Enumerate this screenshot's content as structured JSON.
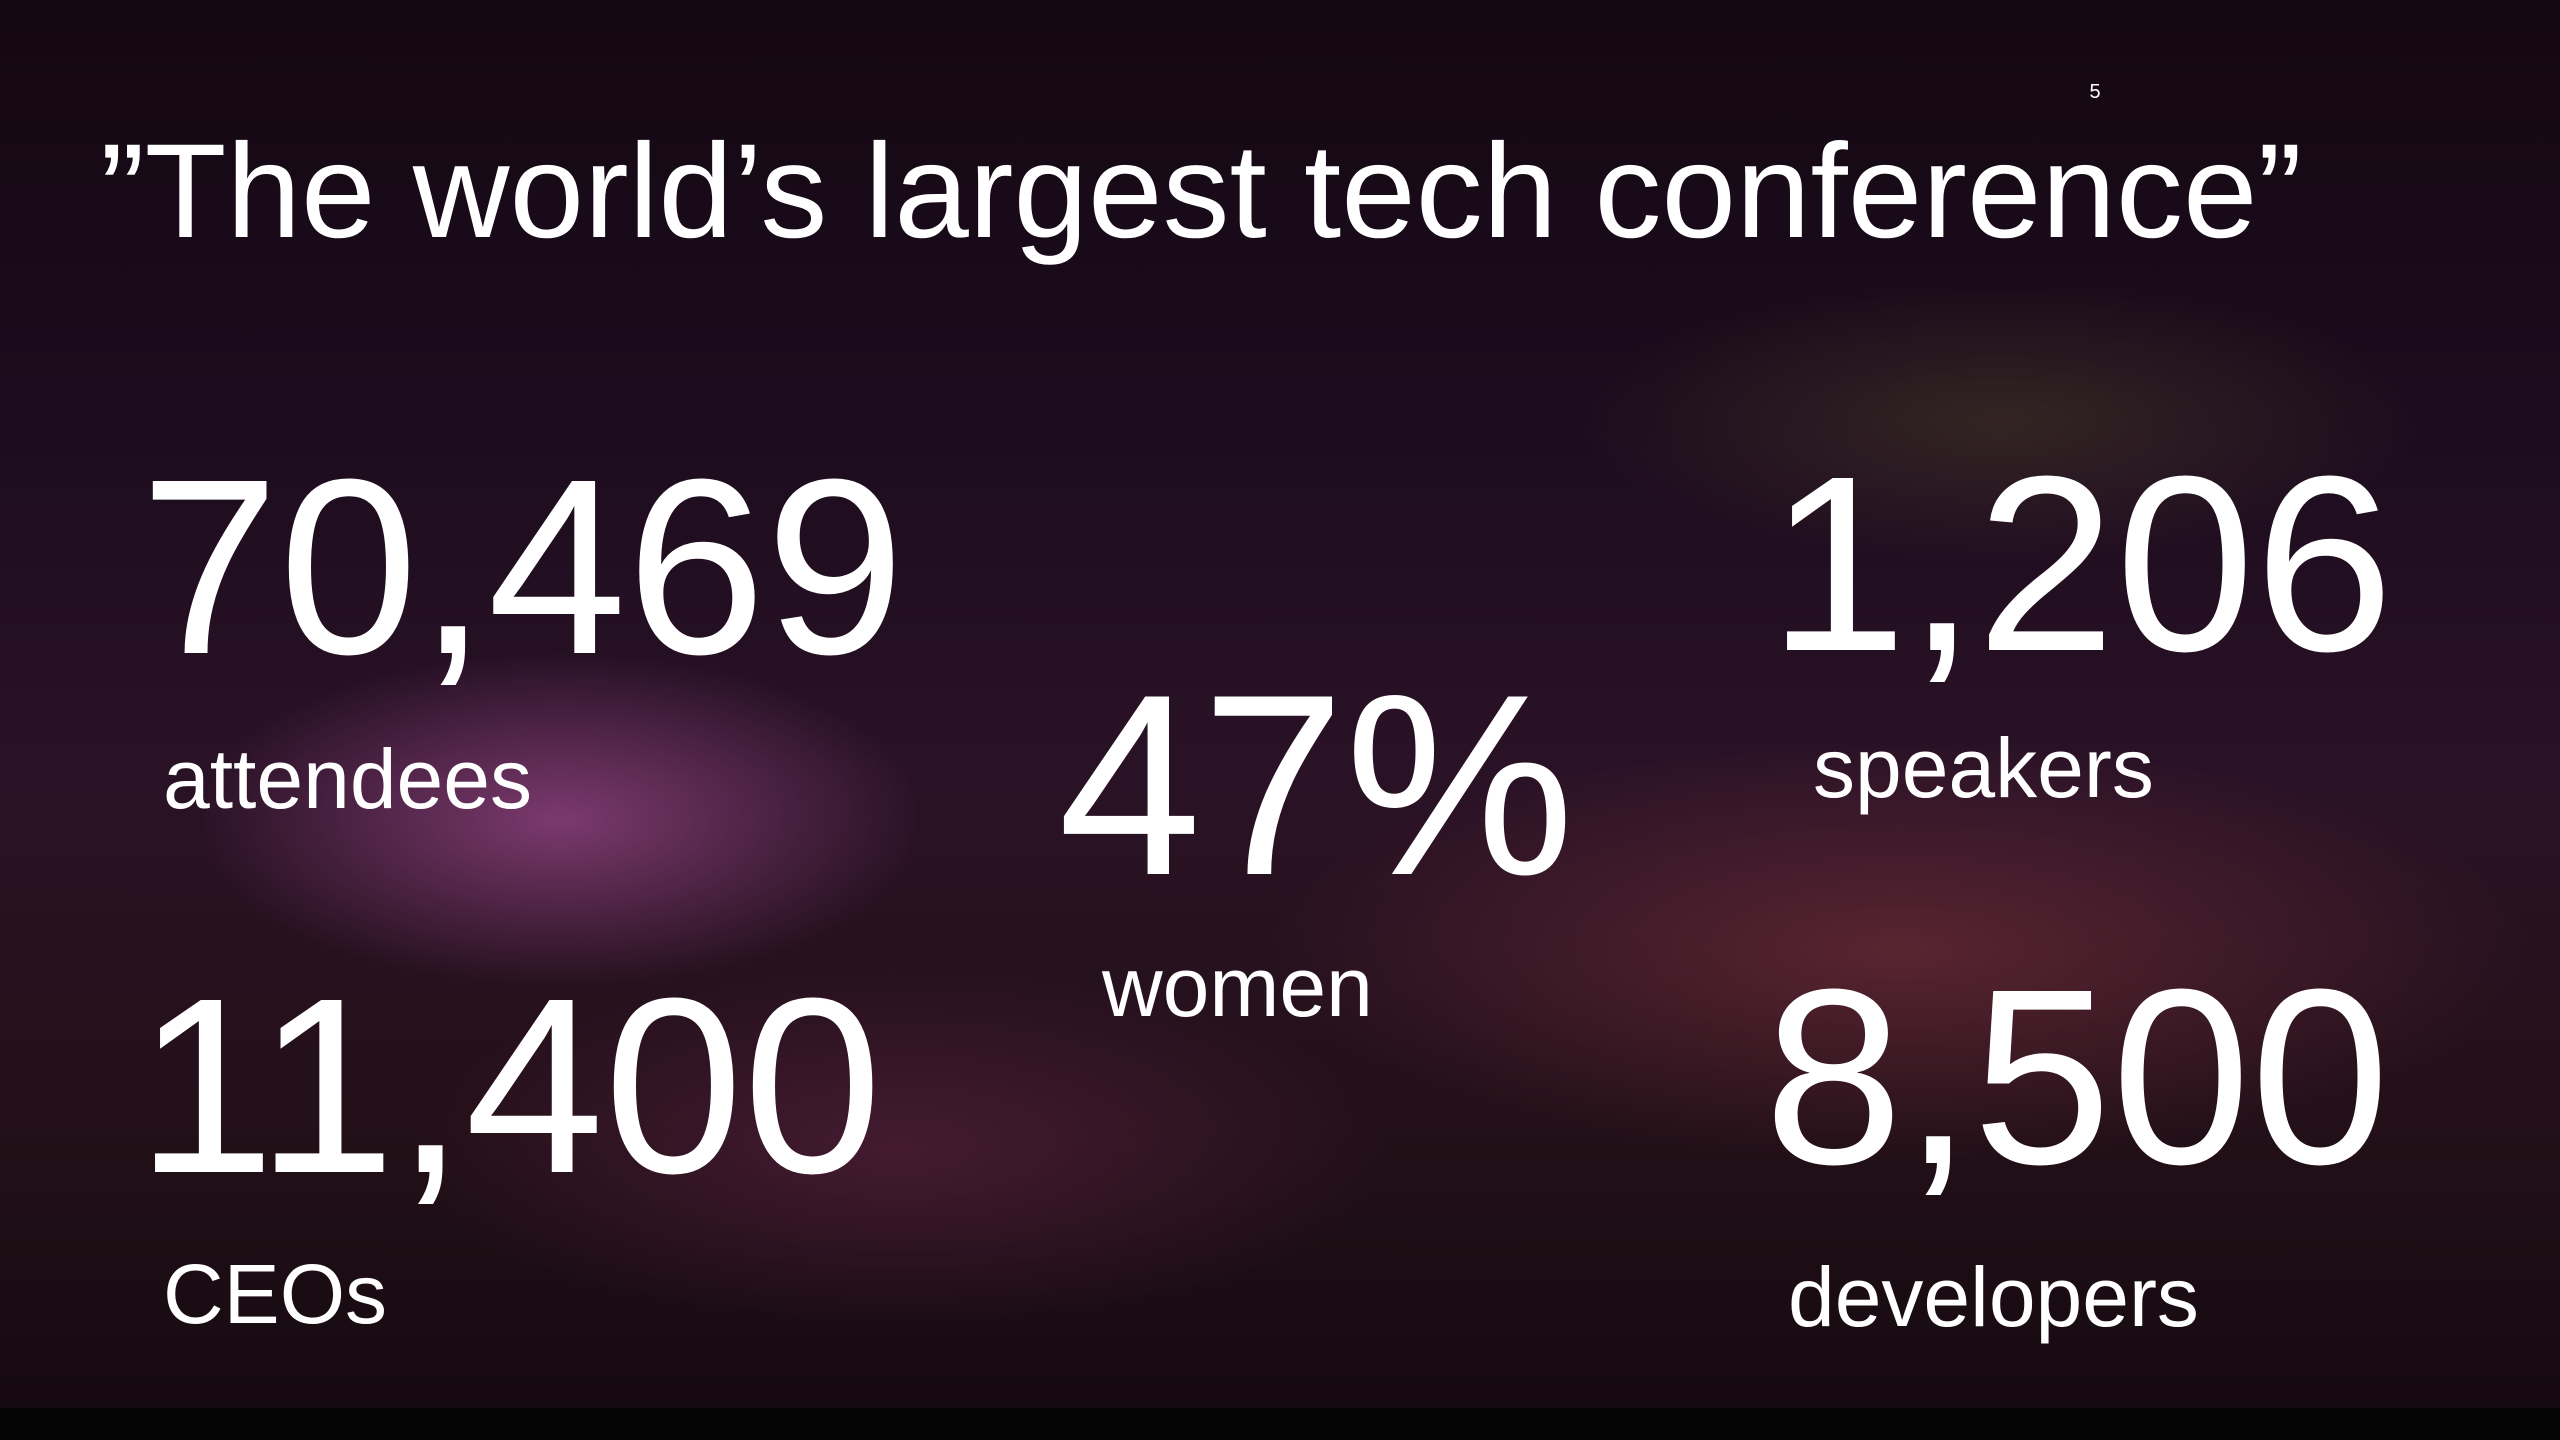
{
  "page_number": "5",
  "title": "”The world’s largest tech conference”",
  "stats": [
    {
      "number": "70,469",
      "label": "attendees"
    },
    {
      "number": "47%",
      "label": "women"
    },
    {
      "number": "1,206",
      "label": "speakers"
    },
    {
      "number": "11,400",
      "label": "CEOs"
    },
    {
      "number": "8,500",
      "label": "developers"
    }
  ]
}
